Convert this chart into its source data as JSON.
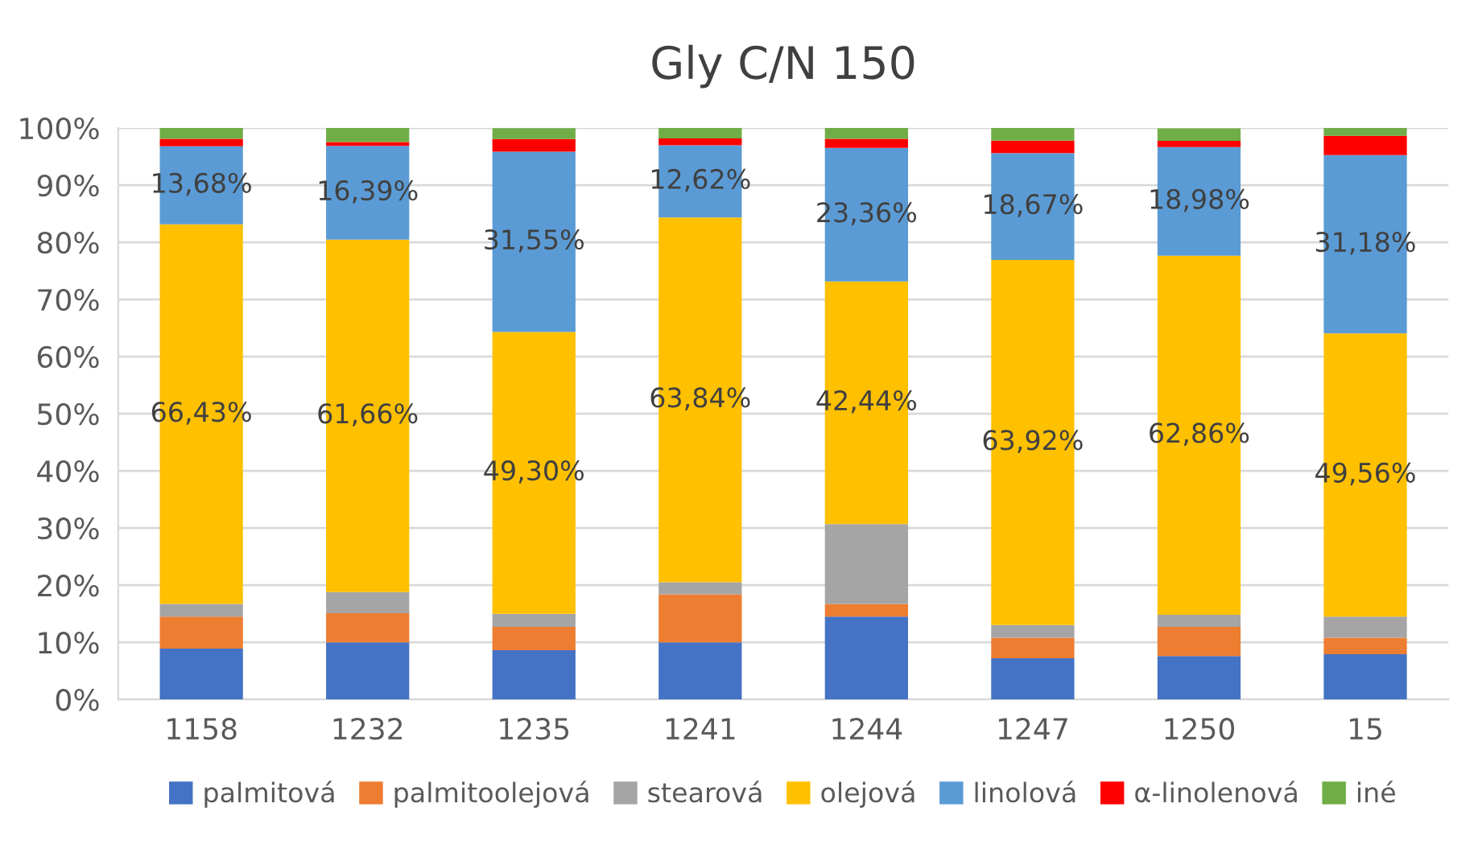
{
  "chart_data": {
    "type": "bar",
    "title": "Gly C/N 150",
    "stacked": true,
    "grid": "y",
    "legend": "bottom",
    "categories": [
      "1158",
      "1232",
      "1235",
      "1241",
      "1244",
      "1247",
      "1250",
      "15"
    ],
    "ylim": [
      0,
      100
    ],
    "yticks": [
      {
        "value": 0,
        "label": "0%"
      },
      {
        "value": 10,
        "label": "10%"
      },
      {
        "value": 20,
        "label": "20%"
      },
      {
        "value": 30,
        "label": "30%"
      },
      {
        "value": 40,
        "label": "40%"
      },
      {
        "value": 50,
        "label": "50%"
      },
      {
        "value": 60,
        "label": "60%"
      },
      {
        "value": 70,
        "label": "70%"
      },
      {
        "value": 80,
        "label": "80%"
      },
      {
        "value": 90,
        "label": "90%"
      },
      {
        "value": 100,
        "label": "100%"
      }
    ],
    "series": [
      {
        "name": "palmitová",
        "color": "#4472c4",
        "values": [
          8.9,
          10.0,
          8.6,
          10.0,
          14.5,
          7.2,
          7.6,
          7.9
        ]
      },
      {
        "name": "palmitoolejová",
        "color": "#ed7d31",
        "values": [
          5.6,
          5.1,
          4.1,
          8.4,
          2.2,
          3.6,
          5.1,
          2.9
        ]
      },
      {
        "name": "stearová",
        "color": "#a5a5a5",
        "values": [
          2.2,
          3.7,
          2.3,
          2.1,
          14.0,
          2.2,
          2.1,
          3.7
        ]
      },
      {
        "name": "olejová",
        "color": "#ffc000",
        "values": [
          66.43,
          61.66,
          49.3,
          63.84,
          42.44,
          63.92,
          62.86,
          49.56
        ],
        "value_labels": [
          "66,43%",
          "61,66%",
          "49,30%",
          "63,84%",
          "42,44%",
          "63,92%",
          "62,86%",
          "49,56%"
        ]
      },
      {
        "name": "linolová",
        "color": "#5b9bd5",
        "values": [
          13.68,
          16.39,
          31.55,
          12.62,
          23.36,
          18.67,
          18.98,
          31.18
        ],
        "value_labels": [
          "13,68%",
          "16,39%",
          "31,55%",
          "12,62%",
          "23,36%",
          "18,67%",
          "18,98%",
          "31,18%"
        ]
      },
      {
        "name": "α-linolenová",
        "color": "#ff0000",
        "values": [
          1.3,
          0.7,
          2.2,
          1.2,
          1.6,
          2.2,
          1.1,
          3.4
        ]
      },
      {
        "name": "iné",
        "color": "#70ad47",
        "values": [
          1.9,
          2.5,
          1.9,
          1.9,
          1.9,
          2.2,
          2.2,
          1.4
        ]
      }
    ]
  }
}
